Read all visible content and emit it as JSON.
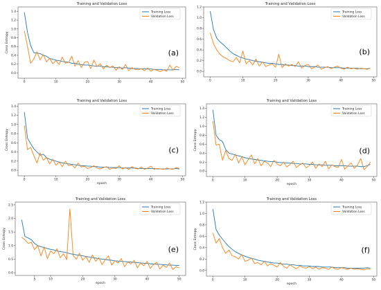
{
  "figure": {
    "colors": {
      "training": "#1f77b4",
      "validation": "#ff7f0e"
    }
  },
  "chart_data": [
    {
      "type": "line",
      "panel_label": "(a)",
      "title": "Training and Validation Loss",
      "xlabel": "",
      "ylabel": "Cross Entropy",
      "xlim": [
        -2,
        51
      ],
      "ylim": [
        -0.12,
        1.5
      ],
      "xticks": [
        0,
        10,
        20,
        30,
        40,
        50
      ],
      "yticks": [
        0.0,
        0.2,
        0.4,
        0.6,
        0.8,
        1.0,
        1.2,
        1.4
      ],
      "legend": "top-right",
      "grid": false,
      "x": [
        0,
        1,
        2,
        3,
        4,
        5,
        6,
        7,
        8,
        9,
        10,
        11,
        12,
        13,
        14,
        15,
        16,
        17,
        18,
        19,
        20,
        21,
        22,
        23,
        24,
        25,
        26,
        27,
        28,
        29,
        30,
        31,
        32,
        33,
        34,
        35,
        36,
        37,
        38,
        39,
        40,
        41,
        42,
        43,
        44,
        45,
        46,
        47,
        48,
        49
      ],
      "series": [
        {
          "name": "Training Loss",
          "color": "#1f77b4",
          "values": [
            1.38,
            0.92,
            0.62,
            0.46,
            0.45,
            0.44,
            0.4,
            0.38,
            0.33,
            0.31,
            0.29,
            0.28,
            0.26,
            0.25,
            0.24,
            0.22,
            0.22,
            0.2,
            0.19,
            0.18,
            0.18,
            0.17,
            0.16,
            0.15,
            0.16,
            0.14,
            0.14,
            0.13,
            0.13,
            0.12,
            0.12,
            0.11,
            0.12,
            0.11,
            0.1,
            0.1,
            0.1,
            0.09,
            0.1,
            0.09,
            0.09,
            0.08,
            0.08,
            0.08,
            0.07,
            0.07,
            0.07,
            0.07,
            0.08,
            0.07
          ]
        },
        {
          "name": "Validation Loss",
          "color": "#ff7f0e",
          "values": [
            0.96,
            0.6,
            0.22,
            0.32,
            0.48,
            0.3,
            0.42,
            0.25,
            0.33,
            0.21,
            0.28,
            0.19,
            0.36,
            0.22,
            0.24,
            0.38,
            0.15,
            0.28,
            0.12,
            0.24,
            0.26,
            0.1,
            0.29,
            0.14,
            0.21,
            0.09,
            0.18,
            0.12,
            0.16,
            0.06,
            0.14,
            0.08,
            0.19,
            0.05,
            0.12,
            0.08,
            0.07,
            0.1,
            0.05,
            0.11,
            0.04,
            0.08,
            0.06,
            0.03,
            0.07,
            0.04,
            0.18,
            0.06,
            0.15,
            0.12
          ]
        }
      ]
    },
    {
      "type": "line",
      "panel_label": "(b)",
      "title": "Training and Validation Loss",
      "xlabel": "",
      "ylabel": "",
      "xlim": [
        -2,
        51
      ],
      "ylim": [
        -0.1,
        1.2
      ],
      "xticks": [
        0,
        10,
        20,
        30,
        40,
        50
      ],
      "yticks": [
        0.0,
        0.2,
        0.4,
        0.6,
        0.8,
        1.0,
        1.2
      ],
      "legend": "top-right",
      "grid": false,
      "x": [
        0,
        1,
        2,
        3,
        4,
        5,
        6,
        7,
        8,
        9,
        10,
        11,
        12,
        13,
        14,
        15,
        16,
        17,
        18,
        19,
        20,
        21,
        22,
        23,
        24,
        25,
        26,
        27,
        28,
        29,
        30,
        31,
        32,
        33,
        34,
        35,
        36,
        37,
        38,
        39,
        40,
        41,
        42,
        43,
        44,
        45,
        46,
        47,
        48,
        49
      ],
      "series": [
        {
          "name": "Training Loss",
          "color": "#1f77b4",
          "values": [
            1.12,
            0.78,
            0.62,
            0.55,
            0.5,
            0.44,
            0.38,
            0.33,
            0.3,
            0.27,
            0.25,
            0.23,
            0.22,
            0.2,
            0.19,
            0.18,
            0.17,
            0.16,
            0.15,
            0.15,
            0.14,
            0.13,
            0.13,
            0.12,
            0.12,
            0.11,
            0.11,
            0.1,
            0.1,
            0.1,
            0.09,
            0.09,
            0.09,
            0.08,
            0.08,
            0.08,
            0.08,
            0.07,
            0.07,
            0.07,
            0.07,
            0.06,
            0.06,
            0.06,
            0.06,
            0.06,
            0.05,
            0.05,
            0.05,
            0.06
          ]
        },
        {
          "name": "Validation Loss",
          "color": "#ff7f0e",
          "values": [
            0.72,
            0.52,
            0.4,
            0.32,
            0.27,
            0.24,
            0.2,
            0.18,
            0.26,
            0.16,
            0.38,
            0.14,
            0.2,
            0.12,
            0.23,
            0.1,
            0.18,
            0.09,
            0.12,
            0.14,
            0.08,
            0.32,
            0.07,
            0.14,
            0.1,
            0.13,
            0.09,
            0.18,
            0.06,
            0.11,
            0.13,
            0.05,
            0.08,
            0.12,
            0.04,
            0.07,
            0.09,
            0.05,
            0.08,
            0.1,
            0.06,
            0.04,
            0.08,
            0.05,
            0.06,
            0.04,
            0.06,
            0.05,
            0.04,
            0.06
          ]
        }
      ]
    },
    {
      "type": "line",
      "panel_label": "(c)",
      "title": "Training and Validation Loss",
      "xlabel": "epoch",
      "ylabel": "Cross Entropy",
      "xlim": [
        -2,
        51
      ],
      "ylim": [
        -0.12,
        1.45
      ],
      "xticks": [
        0,
        10,
        20,
        30,
        40,
        50
      ],
      "yticks": [
        0.0,
        0.2,
        0.4,
        0.6,
        0.8,
        1.0,
        1.2,
        1.4
      ],
      "legend": "top-right",
      "grid": false,
      "x": [
        0,
        1,
        2,
        3,
        4,
        5,
        6,
        7,
        8,
        9,
        10,
        11,
        12,
        13,
        14,
        15,
        16,
        17,
        18,
        19,
        20,
        21,
        22,
        23,
        24,
        25,
        26,
        27,
        28,
        29,
        30,
        31,
        32,
        33,
        34,
        35,
        36,
        37,
        38,
        39,
        40,
        41,
        42,
        43,
        44,
        45,
        46,
        47,
        48,
        49
      ],
      "series": [
        {
          "name": "Training Loss",
          "color": "#1f77b4",
          "values": [
            1.27,
            0.7,
            0.58,
            0.47,
            0.4,
            0.33,
            0.35,
            0.28,
            0.24,
            0.22,
            0.2,
            0.18,
            0.16,
            0.15,
            0.14,
            0.13,
            0.12,
            0.11,
            0.1,
            0.1,
            0.09,
            0.09,
            0.08,
            0.08,
            0.07,
            0.07,
            0.07,
            0.06,
            0.06,
            0.06,
            0.06,
            0.05,
            0.05,
            0.05,
            0.05,
            0.05,
            0.04,
            0.04,
            0.04,
            0.04,
            0.04,
            0.04,
            0.03,
            0.03,
            0.03,
            0.03,
            0.03,
            0.03,
            0.04,
            0.03
          ]
        },
        {
          "name": "Validation Loss",
          "color": "#ff7f0e",
          "values": [
            0.98,
            0.45,
            0.5,
            0.32,
            0.16,
            0.38,
            0.22,
            0.28,
            0.14,
            0.24,
            0.11,
            0.18,
            0.08,
            0.2,
            0.1,
            0.12,
            0.05,
            0.16,
            0.07,
            0.09,
            0.04,
            0.06,
            0.1,
            0.05,
            0.03,
            0.06,
            0.08,
            0.02,
            0.05,
            0.04,
            0.1,
            0.03,
            0.06,
            0.02,
            0.08,
            0.04,
            0.03,
            0.07,
            0.02,
            0.05,
            0.09,
            0.02,
            0.04,
            0.03,
            0.02,
            0.05,
            0.03,
            0.02,
            0.06,
            0.04
          ]
        }
      ]
    },
    {
      "type": "line",
      "panel_label": "(d)",
      "title": "Training and Validation Loss",
      "xlabel": "epoch",
      "ylabel": "Cross Entropy",
      "xlim": [
        -2,
        51
      ],
      "ylim": [
        -0.12,
        1.5
      ],
      "xticks": [
        0,
        10,
        20,
        30,
        40,
        50
      ],
      "yticks": [
        0.0,
        0.2,
        0.4,
        0.6,
        0.8,
        1.0,
        1.2,
        1.4
      ],
      "legend": "top-right",
      "grid": false,
      "x": [
        0,
        1,
        2,
        3,
        4,
        5,
        6,
        7,
        8,
        9,
        10,
        11,
        12,
        13,
        14,
        15,
        16,
        17,
        18,
        19,
        20,
        21,
        22,
        23,
        24,
        25,
        26,
        27,
        28,
        29,
        30,
        31,
        32,
        33,
        34,
        35,
        36,
        37,
        38,
        39,
        40,
        41,
        42,
        43,
        44,
        45,
        46,
        47,
        48,
        49
      ],
      "series": [
        {
          "name": "Training Loss",
          "color": "#1f77b4",
          "values": [
            1.37,
            0.8,
            0.7,
            0.66,
            0.48,
            0.4,
            0.38,
            0.36,
            0.34,
            0.32,
            0.3,
            0.28,
            0.27,
            0.26,
            0.25,
            0.24,
            0.23,
            0.22,
            0.21,
            0.21,
            0.2,
            0.19,
            0.19,
            0.18,
            0.18,
            0.17,
            0.17,
            0.16,
            0.16,
            0.16,
            0.15,
            0.15,
            0.14,
            0.14,
            0.14,
            0.13,
            0.13,
            0.13,
            0.12,
            0.12,
            0.12,
            0.12,
            0.11,
            0.11,
            0.11,
            0.11,
            0.1,
            0.1,
            0.12,
            0.15
          ]
        },
        {
          "name": "Validation Loss",
          "color": "#ff7f0e",
          "values": [
            1.12,
            0.58,
            0.6,
            0.24,
            0.46,
            0.28,
            0.24,
            0.38,
            0.18,
            0.32,
            0.14,
            0.26,
            0.36,
            0.16,
            0.28,
            0.12,
            0.22,
            0.18,
            0.1,
            0.24,
            0.16,
            0.12,
            0.2,
            0.09,
            0.15,
            0.22,
            0.08,
            0.14,
            0.18,
            0.07,
            0.12,
            0.2,
            0.06,
            0.16,
            0.1,
            0.22,
            0.05,
            0.14,
            0.1,
            0.08,
            0.26,
            0.04,
            0.12,
            0.18,
            0.06,
            0.14,
            0.28,
            0.03,
            0.1,
            0.2
          ]
        }
      ]
    },
    {
      "type": "line",
      "panel_label": "(e)",
      "title": "Training and Validation Loss",
      "xlabel": "epoch",
      "ylabel": "Cross Entropy",
      "xlim": [
        -1,
        52
      ],
      "ylim": [
        -0.1,
        2.6
      ],
      "xticks": [
        5,
        10,
        20,
        30,
        40,
        50
      ],
      "yticks": [
        0.0,
        0.5,
        1.0,
        1.5,
        2.0,
        2.5
      ],
      "legend": "top-right",
      "grid": false,
      "x": [
        1,
        2,
        3,
        4,
        5,
        6,
        7,
        8,
        9,
        10,
        11,
        12,
        13,
        14,
        15,
        16,
        17,
        18,
        19,
        20,
        21,
        22,
        23,
        24,
        25,
        26,
        27,
        28,
        29,
        30,
        31,
        32,
        33,
        34,
        35,
        36,
        37,
        38,
        39,
        40,
        41,
        42,
        43,
        44,
        45,
        46,
        47,
        48,
        49,
        50
      ],
      "series": [
        {
          "name": "Training Loss",
          "color": "#1f77b4",
          "values": [
            1.95,
            1.34,
            1.28,
            1.22,
            1.08,
            1.0,
            0.96,
            0.93,
            0.89,
            0.86,
            0.84,
            0.8,
            0.78,
            0.76,
            0.74,
            0.7,
            0.68,
            0.66,
            0.64,
            0.62,
            0.6,
            0.58,
            0.56,
            0.54,
            0.52,
            0.5,
            0.49,
            0.47,
            0.46,
            0.44,
            0.43,
            0.42,
            0.41,
            0.4,
            0.39,
            0.38,
            0.37,
            0.36,
            0.35,
            0.34,
            0.33,
            0.32,
            0.31,
            0.31,
            0.3,
            0.29,
            0.28,
            0.28,
            0.27,
            0.27
          ]
        },
        {
          "name": "Validation Loss",
          "color": "#ff7f0e",
          "values": [
            1.3,
            1.22,
            1.08,
            1.12,
            0.85,
            1.0,
            0.62,
            0.95,
            0.52,
            0.8,
            0.7,
            0.88,
            0.55,
            0.7,
            0.48,
            2.35,
            0.64,
            0.5,
            0.72,
            0.46,
            0.6,
            0.38,
            0.66,
            0.42,
            0.55,
            0.3,
            0.48,
            0.62,
            0.28,
            0.44,
            0.36,
            0.52,
            0.22,
            0.4,
            0.32,
            0.46,
            0.18,
            0.36,
            0.26,
            0.42,
            0.16,
            0.3,
            0.38,
            0.14,
            0.28,
            0.2,
            0.36,
            0.12,
            0.22,
            0.18
          ]
        }
      ]
    },
    {
      "type": "line",
      "panel_label": "(f)",
      "title": "Training and Validation Loss",
      "xlabel": "epoch",
      "ylabel": "Cross Entropy",
      "xlim": [
        -2,
        51
      ],
      "ylim": [
        -0.1,
        1.2
      ],
      "xticks": [
        0,
        10,
        20,
        30,
        40,
        50
      ],
      "yticks": [
        0.0,
        0.2,
        0.4,
        0.6,
        0.8,
        1.0,
        1.2
      ],
      "legend": "top-right",
      "grid": false,
      "x": [
        0,
        1,
        2,
        3,
        4,
        5,
        6,
        7,
        8,
        9,
        10,
        11,
        12,
        13,
        14,
        15,
        16,
        17,
        18,
        19,
        20,
        21,
        22,
        23,
        24,
        25,
        26,
        27,
        28,
        29,
        30,
        31,
        32,
        33,
        34,
        35,
        36,
        37,
        38,
        39,
        40,
        41,
        42,
        43,
        44,
        45,
        46,
        47,
        48,
        49
      ],
      "series": [
        {
          "name": "Training Loss",
          "color": "#1f77b4",
          "values": [
            1.08,
            0.72,
            0.62,
            0.55,
            0.48,
            0.42,
            0.37,
            0.33,
            0.3,
            0.27,
            0.25,
            0.23,
            0.21,
            0.2,
            0.18,
            0.17,
            0.16,
            0.15,
            0.14,
            0.13,
            0.13,
            0.12,
            0.11,
            0.11,
            0.1,
            0.1,
            0.09,
            0.09,
            0.08,
            0.08,
            0.08,
            0.07,
            0.07,
            0.07,
            0.06,
            0.06,
            0.06,
            0.06,
            0.05,
            0.05,
            0.05,
            0.05,
            0.04,
            0.04,
            0.04,
            0.04,
            0.04,
            0.04,
            0.05,
            0.04
          ]
        },
        {
          "name": "Validation Loss",
          "color": "#ff7f0e",
          "values": [
            0.66,
            0.48,
            0.56,
            0.4,
            0.3,
            0.36,
            0.26,
            0.24,
            0.2,
            0.28,
            0.16,
            0.18,
            0.22,
            0.12,
            0.14,
            0.1,
            0.16,
            0.08,
            0.12,
            0.09,
            0.06,
            0.14,
            0.07,
            0.04,
            0.1,
            0.06,
            0.03,
            0.08,
            0.05,
            0.04,
            0.07,
            0.03,
            0.06,
            0.02,
            0.05,
            0.04,
            0.02,
            0.06,
            0.03,
            0.02,
            0.05,
            0.03,
            0.02,
            0.04,
            0.02,
            0.03,
            0.02,
            0.01,
            0.03,
            0.02
          ]
        }
      ]
    }
  ]
}
